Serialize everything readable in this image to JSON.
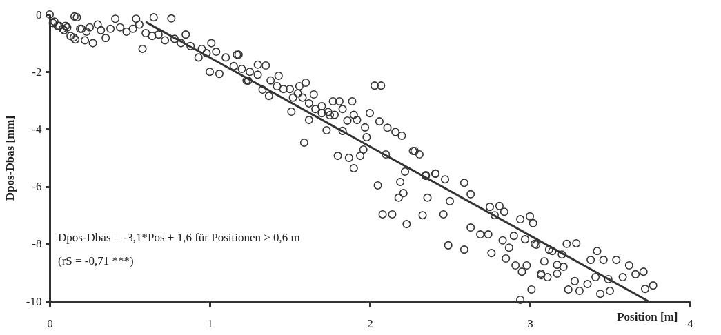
{
  "chart_data": {
    "type": "scatter",
    "xlabel": "Position [m]",
    "ylabel": "Dpos-Dbas [mm]",
    "xlim": [
      0,
      4
    ],
    "xticks": [
      0,
      1,
      2,
      3,
      4
    ],
    "ylim": [
      -10,
      0
    ],
    "yticks": [
      -10,
      -8,
      -6,
      -4,
      -2,
      0
    ],
    "grid": false,
    "marker": "circle",
    "annotations": [
      "Dpos-Dbas =  -3,1*Pos + 1,6 für Positionen > 0,6 m",
      "(rS = -0,71 ***)"
    ],
    "series": [
      {
        "color": "#333333",
        "x": [
          0.0,
          0.02,
          0.03,
          0.05,
          0.06,
          0.08,
          0.09,
          0.1,
          0.11,
          0.13,
          0.15,
          0.155,
          0.16,
          0.17,
          0.19,
          0.2,
          0.22,
          0.23,
          0.25,
          0.27,
          0.3,
          0.32,
          0.35,
          0.38,
          0.41,
          0.44,
          0.48,
          0.52,
          0.54,
          0.56,
          0.58,
          0.6,
          0.64,
          0.65,
          0.68,
          0.72,
          0.76,
          0.78,
          0.82,
          0.85,
          0.88,
          0.93,
          0.95,
          0.98,
          1.0,
          1.01,
          1.04,
          1.06,
          1.1,
          1.15,
          1.17,
          1.18,
          1.2,
          1.23,
          1.24,
          1.25,
          1.3,
          1.3,
          1.33,
          1.35,
          1.37,
          1.38,
          1.42,
          1.43,
          1.46,
          1.5,
          1.51,
          1.52,
          1.55,
          1.56,
          1.58,
          1.59,
          1.6,
          1.62,
          1.62,
          1.65,
          1.66,
          1.7,
          1.7,
          1.73,
          1.74,
          1.75,
          1.77,
          1.78,
          1.8,
          1.81,
          1.83,
          1.83,
          1.86,
          1.87,
          1.89,
          1.9,
          1.9,
          1.92,
          1.94,
          1.96,
          1.97,
          1.98,
          2.0,
          2.03,
          2.05,
          2.06,
          2.07,
          2.08,
          2.1,
          2.11,
          2.14,
          2.16,
          2.18,
          2.19,
          2.2,
          2.21,
          2.22,
          2.23,
          2.27,
          2.28,
          2.31,
          2.33,
          2.35,
          2.35,
          2.36,
          2.41,
          2.41,
          2.46,
          2.47,
          2.49,
          2.5,
          2.59,
          2.59,
          2.63,
          2.63,
          2.69,
          2.74,
          2.75,
          2.76,
          2.78,
          2.81,
          2.83,
          2.84,
          2.85,
          2.87,
          2.9,
          2.91,
          2.94,
          2.94,
          2.95,
          2.97,
          2.98,
          3.0,
          3.01,
          3.02,
          3.03,
          3.04,
          3.07,
          3.07,
          3.09,
          3.11,
          3.12,
          3.14,
          3.17,
          3.17,
          3.2,
          3.21,
          3.23,
          3.24,
          3.28,
          3.29,
          3.31,
          3.36,
          3.38,
          3.41,
          3.42,
          3.44,
          3.46,
          3.49,
          3.5,
          3.54,
          3.58,
          3.62,
          3.66,
          3.71,
          3.72,
          3.77
        ],
        "values": [
          0.0,
          -0.3,
          -0.25,
          -0.4,
          -0.4,
          -0.5,
          -0.55,
          -0.4,
          -0.45,
          -0.75,
          -0.8,
          -0.07,
          -0.87,
          -0.1,
          -0.5,
          -0.5,
          -0.9,
          -0.6,
          -0.45,
          -1.0,
          -0.35,
          -0.55,
          -0.82,
          -0.5,
          -0.15,
          -0.45,
          -0.6,
          -0.5,
          -0.15,
          -0.35,
          -1.2,
          -0.65,
          -0.75,
          -0.1,
          -0.7,
          -0.9,
          -0.14,
          -0.85,
          -1.0,
          -0.7,
          -1.1,
          -1.5,
          -1.2,
          -1.35,
          -2.0,
          -1.0,
          -1.3,
          -2.07,
          -1.5,
          -1.8,
          -1.4,
          -1.4,
          -1.9,
          -2.3,
          -2.31,
          -2.0,
          -1.75,
          -2.1,
          -2.62,
          -1.78,
          -2.84,
          -2.3,
          -2.5,
          -2.14,
          -2.6,
          -2.6,
          -3.39,
          -2.9,
          -2.75,
          -2.5,
          -2.9,
          -4.47,
          -2.38,
          -3.1,
          -3.68,
          -2.79,
          -3.3,
          -3.2,
          -3.44,
          -4.04,
          -3.4,
          -3.51,
          -3.03,
          -3.5,
          -4.93,
          -3.03,
          -3.3,
          -4.06,
          -3.7,
          -5.0,
          -3.03,
          -3.5,
          -5.36,
          -3.68,
          -4.93,
          -4.71,
          -3.94,
          -4.28,
          -3.44,
          -2.48,
          -5.96,
          -3.73,
          -2.48,
          -6.97,
          -4.88,
          -3.95,
          -6.97,
          -4.1,
          -6.39,
          -5.84,
          -4.23,
          -6.23,
          -5.48,
          -7.31,
          -4.76,
          -4.76,
          -4.88,
          -7.0,
          -5.6,
          -5.63,
          -6.39,
          -5.55,
          -5.55,
          -6.97,
          -5.75,
          -8.05,
          -6.51,
          -5.87,
          -8.2,
          -6.27,
          -7.43,
          -7.67,
          -7.67,
          -6.71,
          -8.32,
          -7.0,
          -6.68,
          -7.88,
          -6.88,
          -8.51,
          -8.13,
          -7.72,
          -8.75,
          -7.14,
          -9.95,
          -8.97,
          -7.84,
          -8.75,
          -7.04,
          -9.59,
          -7.28,
          -8.0,
          -8.03,
          -9.09,
          -9.04,
          -8.61,
          -9.16,
          -8.2,
          -8.25,
          -8.73,
          -9.04,
          -8.37,
          -8.8,
          -8.0,
          -9.59,
          -9.3,
          -7.98,
          -9.64,
          -9.4,
          -8.56,
          -9.16,
          -8.25,
          -9.74,
          -8.56,
          -9.23,
          -9.64,
          -8.56,
          -9.16,
          -8.75,
          -9.06,
          -8.97,
          -9.57,
          -9.45
        ]
      },
      {
        "type": "line",
        "marker": "none",
        "color": "#333333",
        "x": [
          0.6,
          3.74
        ],
        "values": [
          -0.26,
          -10
        ]
      }
    ]
  }
}
